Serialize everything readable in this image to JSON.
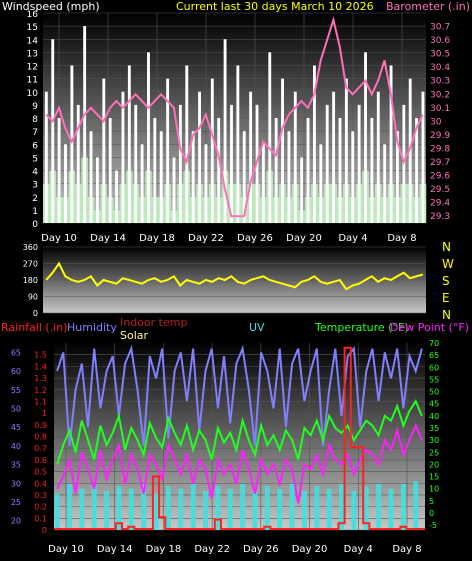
{
  "header": {
    "title": "Current last 30 days March 10 2026"
  },
  "chart_data": [
    {
      "id": "wind-baro",
      "type": "bar",
      "left_label": "Windspeed (mph)",
      "right_label": "Barometer (.in)",
      "x_ticks": [
        "Day 10",
        "Day 14",
        "Day 18",
        "Day 22",
        "Day 26",
        "Day 20",
        "Day 4",
        "Day 8"
      ],
      "ylim_left": [
        0,
        16
      ],
      "yticks_left": [
        "0",
        "1",
        "2",
        "3",
        "4",
        "5",
        "6",
        "7",
        "8",
        "9",
        "10",
        "11",
        "12",
        "13",
        "14",
        "15",
        "16"
      ],
      "ylim_right": [
        29.25,
        30.8
      ],
      "yticks_right": [
        "29.3",
        "29.4",
        "29.5",
        "29.6",
        "29.7",
        "29.8",
        "29.9",
        "30",
        "30.1",
        "30.2",
        "30.3",
        "30.4",
        "30.5",
        "30.6",
        "30.7"
      ],
      "grid": true,
      "series": [
        {
          "role": "windspeed-gust",
          "type": "bar",
          "color": "#ffffff",
          "values": [
            10,
            14,
            8,
            6,
            12,
            9,
            15,
            7,
            5,
            11,
            8,
            4,
            10,
            12,
            9,
            6,
            13,
            8,
            7,
            11,
            5,
            9,
            12,
            7,
            10,
            6,
            11,
            8,
            14,
            9,
            12,
            7,
            10,
            9,
            6,
            13,
            8,
            11,
            7,
            10,
            5,
            8,
            12,
            6,
            9,
            10,
            8,
            11,
            7,
            9,
            13,
            8,
            10,
            6,
            12,
            7,
            9,
            11,
            8,
            10
          ]
        },
        {
          "role": "windspeed-avg",
          "type": "area",
          "color": "#c0f0c0",
          "values": [
            3,
            4,
            2,
            2,
            4,
            3,
            5,
            2,
            1,
            3,
            2,
            1,
            3,
            4,
            3,
            2,
            4,
            2,
            2,
            3,
            1,
            3,
            4,
            2,
            3,
            2,
            3,
            2,
            4,
            3,
            3,
            2,
            3,
            3,
            2,
            4,
            2,
            3,
            2,
            3,
            1,
            2,
            3,
            2,
            3,
            3,
            2,
            3,
            2,
            3,
            4,
            2,
            3,
            2,
            3,
            2,
            3,
            3,
            2,
            3
          ]
        },
        {
          "role": "barometer",
          "type": "line",
          "color": "#ff70b8",
          "values": [
            30.05,
            30.0,
            30.1,
            29.95,
            29.85,
            29.95,
            30.05,
            30.1,
            30.05,
            30.0,
            30.1,
            30.15,
            30.1,
            30.15,
            30.2,
            30.15,
            30.1,
            30.15,
            30.2,
            30.15,
            30.1,
            29.8,
            29.7,
            29.9,
            29.95,
            30.05,
            29.9,
            29.75,
            29.5,
            29.3,
            29.3,
            29.3,
            29.55,
            29.7,
            29.85,
            29.8,
            29.75,
            29.95,
            30.05,
            30.1,
            30.15,
            30.1,
            30.2,
            30.45,
            30.6,
            30.75,
            30.55,
            30.25,
            30.2,
            30.25,
            30.3,
            30.2,
            30.3,
            30.45,
            30.2,
            29.85,
            29.7,
            29.8,
            29.95,
            30.05
          ]
        }
      ]
    },
    {
      "id": "wind-direction",
      "type": "line",
      "ylim": [
        0,
        360
      ],
      "yticks": [
        "0",
        "90",
        "180",
        "270",
        "360"
      ],
      "right_labels": [
        "N",
        "W",
        "S",
        "E",
        "N"
      ],
      "grid": true,
      "series": [
        {
          "role": "wind-direction",
          "color": "#ffff00",
          "values": [
            180,
            220,
            270,
            200,
            180,
            170,
            180,
            200,
            150,
            180,
            170,
            160,
            190,
            180,
            170,
            160,
            180,
            190,
            170,
            180,
            200,
            150,
            180,
            170,
            160,
            180,
            170,
            190,
            180,
            200,
            170,
            160,
            180,
            190,
            200,
            180,
            170,
            160,
            150,
            140,
            170,
            180,
            200,
            170,
            160,
            170,
            180,
            130,
            150,
            160,
            180,
            200,
            170,
            190,
            180,
            200,
            220,
            190,
            200,
            210
          ]
        }
      ]
    },
    {
      "id": "rain-humidity-temp",
      "type": "line",
      "labels": {
        "rainfall": "Rainfall (.in)",
        "humidity": "Humidity",
        "indoor_temp": "Indoor temp",
        "solar": "Solar",
        "uv": "UV",
        "temperature": "Temperature (°F)",
        "dew_point": "Dew Point (°F)"
      },
      "colors": {
        "rainfall": "#ff2020",
        "humidity": "#8080ff",
        "indoor_temp": "#b02020",
        "solar": "#ffff90",
        "uv": "#40e0e0",
        "temperature": "#20ff20",
        "dew_point": "#ff20ff"
      },
      "ylim_rain": [
        0,
        1.6
      ],
      "yticks_rain": [
        "0",
        "0.1",
        "0.2",
        "0.3",
        "0.4",
        "0.5",
        "0.6",
        "0.7",
        "0.8",
        "0.9",
        "1",
        "1.1",
        "1.2",
        "1.3",
        "1.4",
        "1.5"
      ],
      "ylim_humidity": [
        17.5,
        67.5
      ],
      "yticks_humidity": [
        "20",
        "25",
        "30",
        "35",
        "40",
        "45",
        "50",
        "55",
        "60",
        "65"
      ],
      "ylim_temp": [
        -7,
        70
      ],
      "yticks_temp": [
        "-5",
        "0",
        "5",
        "10",
        "15",
        "20",
        "25",
        "30",
        "35",
        "40",
        "45",
        "50",
        "55",
        "60",
        "65",
        "70"
      ],
      "grid": true,
      "series": [
        {
          "role": "humidity",
          "color": "#8080ff",
          "values": [
            60,
            65,
            40,
            55,
            62,
            45,
            66,
            50,
            60,
            64,
            48,
            62,
            66,
            55,
            40,
            64,
            58,
            66,
            42,
            60,
            65,
            52,
            66,
            44,
            60,
            66,
            50,
            64,
            46,
            62,
            66,
            55,
            40,
            65,
            60,
            50,
            66,
            45,
            62,
            66,
            52,
            60,
            66,
            40,
            55,
            66,
            48,
            64,
            66,
            45,
            60,
            66,
            52,
            65,
            58,
            66,
            50,
            64,
            60,
            66
          ]
        },
        {
          "role": "temperature",
          "color": "#20ff20",
          "values": [
            20,
            28,
            34,
            25,
            38,
            30,
            22,
            36,
            28,
            33,
            40,
            26,
            35,
            30,
            24,
            37,
            31,
            27,
            39,
            33,
            28,
            36,
            26,
            34,
            30,
            22,
            35,
            29,
            33,
            26,
            38,
            30,
            24,
            36,
            28,
            32,
            26,
            34,
            30,
            22,
            35,
            32,
            38,
            30,
            40,
            35,
            33,
            36,
            30,
            34,
            38,
            36,
            32,
            40,
            38,
            44,
            36,
            42,
            46,
            40
          ]
        },
        {
          "role": "dew-point",
          "color": "#ff20ff",
          "values": [
            10,
            15,
            22,
            8,
            25,
            18,
            10,
            26,
            14,
            22,
            28,
            12,
            24,
            18,
            8,
            24,
            20,
            14,
            28,
            22,
            16,
            24,
            12,
            22,
            18,
            6,
            22,
            16,
            20,
            12,
            26,
            18,
            8,
            22,
            16,
            20,
            12,
            22,
            18,
            4,
            20,
            18,
            24,
            16,
            28,
            22,
            20,
            24,
            16,
            22,
            26,
            24,
            20,
            30,
            26,
            34,
            24,
            30,
            36,
            30
          ]
        },
        {
          "role": "uv",
          "type": "bar",
          "color": "#40e0e0",
          "values": [
            8,
            0,
            12,
            0,
            10,
            0,
            12,
            0,
            9,
            0,
            11,
            0,
            10,
            0,
            12,
            0,
            8,
            0,
            11,
            0,
            10,
            0,
            12,
            0,
            9,
            0,
            11,
            0,
            10,
            0,
            12,
            0,
            9,
            0,
            11,
            0,
            10,
            0,
            12,
            0,
            9,
            0,
            11,
            0,
            10,
            0,
            12,
            0,
            9,
            0,
            11,
            0,
            12,
            0,
            10,
            0,
            12,
            0,
            13,
            0
          ]
        },
        {
          "role": "rainfall",
          "type": "step",
          "color": "#ff2020",
          "values": [
            0,
            0,
            0,
            0,
            0,
            0,
            0,
            0,
            0,
            0,
            0.05,
            0,
            0.02,
            0,
            0,
            0,
            0.45,
            0.1,
            0,
            0,
            0,
            0,
            0,
            0,
            0,
            0,
            0.08,
            0,
            0,
            0,
            0,
            0,
            0,
            0,
            0.02,
            0,
            0,
            0,
            0,
            0,
            0,
            0,
            0,
            0,
            0,
            0,
            0.05,
            1.55,
            0.7,
            0.7,
            0.05,
            0,
            0,
            0,
            0,
            0,
            0.02,
            0,
            0,
            0
          ]
        }
      ]
    }
  ]
}
